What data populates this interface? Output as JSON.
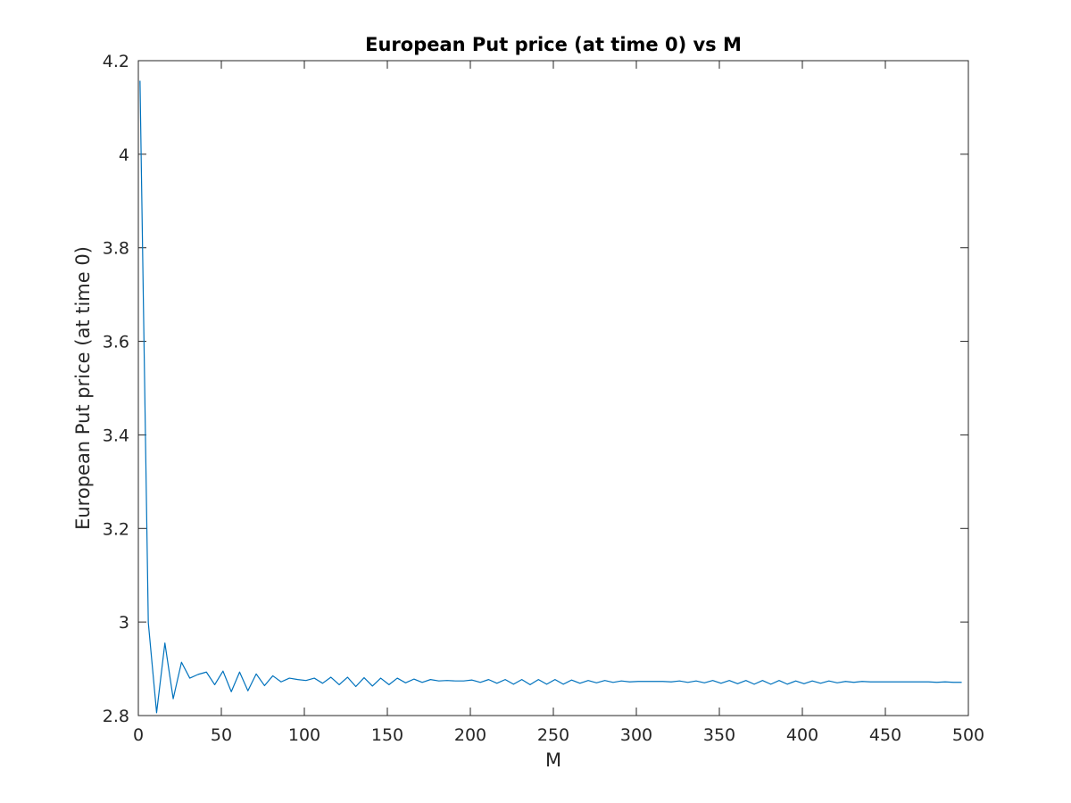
{
  "chart_data": {
    "type": "line",
    "title": "European Put price (at time 0) vs M",
    "xlabel": "M",
    "ylabel": "European Put price (at time 0)",
    "xlim": [
      0,
      500
    ],
    "ylim": [
      2.8,
      4.2
    ],
    "xticks": [
      "0",
      "50",
      "100",
      "150",
      "200",
      "250",
      "300",
      "350",
      "400",
      "450",
      "500"
    ],
    "yticks": [
      "2.8",
      "3",
      "3.2",
      "3.4",
      "3.6",
      "3.8",
      "4",
      "4.2"
    ],
    "grid": false,
    "legend": "none",
    "series": [
      {
        "color": "#0072BD",
        "x": [
          1,
          6,
          11,
          16,
          21,
          26,
          31,
          36,
          41,
          46,
          51,
          56,
          61,
          66,
          71,
          76,
          81,
          86,
          91,
          96,
          101,
          106,
          111,
          116,
          121,
          126,
          131,
          136,
          141,
          146,
          151,
          156,
          161,
          166,
          171,
          176,
          181,
          186,
          191,
          196,
          201,
          206,
          211,
          216,
          221,
          226,
          231,
          236,
          241,
          246,
          251,
          256,
          261,
          266,
          271,
          276,
          281,
          286,
          291,
          296,
          301,
          306,
          311,
          316,
          321,
          326,
          331,
          336,
          341,
          346,
          351,
          356,
          361,
          366,
          371,
          376,
          381,
          386,
          391,
          396,
          401,
          406,
          411,
          416,
          421,
          426,
          431,
          436,
          441,
          446,
          451,
          456,
          461,
          466,
          471,
          476,
          481,
          486,
          491,
          496
        ],
        "y": [
          4.157,
          2.999,
          2.806,
          2.955,
          2.836,
          2.914,
          2.88,
          2.888,
          2.893,
          2.866,
          2.895,
          2.851,
          2.893,
          2.853,
          2.889,
          2.864,
          2.885,
          2.872,
          2.88,
          2.877,
          2.875,
          2.88,
          2.869,
          2.882,
          2.866,
          2.882,
          2.862,
          2.881,
          2.863,
          2.88,
          2.866,
          2.88,
          2.87,
          2.878,
          2.871,
          2.877,
          2.874,
          2.875,
          2.874,
          2.874,
          2.876,
          2.871,
          2.877,
          2.869,
          2.877,
          2.867,
          2.877,
          2.866,
          2.877,
          2.867,
          2.877,
          2.867,
          2.876,
          2.869,
          2.875,
          2.87,
          2.875,
          2.871,
          2.874,
          2.872,
          2.873,
          2.873,
          2.873,
          2.873,
          2.872,
          2.874,
          2.871,
          2.874,
          2.87,
          2.875,
          2.869,
          2.875,
          2.868,
          2.875,
          2.867,
          2.875,
          2.867,
          2.875,
          2.867,
          2.874,
          2.868,
          2.874,
          2.869,
          2.874,
          2.87,
          2.873,
          2.871,
          2.873,
          2.872,
          2.872,
          2.872,
          2.872,
          2.872,
          2.872,
          2.872,
          2.872,
          2.871,
          2.872,
          2.871,
          2.871
        ]
      }
    ]
  }
}
